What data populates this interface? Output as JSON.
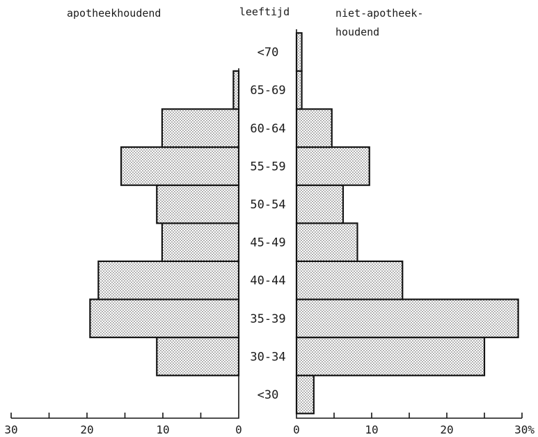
{
  "chart_data": {
    "type": "bar",
    "orientation": "horizontal",
    "layout": "population-pyramid",
    "title": "",
    "category_label": "leeftijd",
    "categories": [
      "<30",
      "30-34",
      "35-39",
      "40-44",
      "45-49",
      "50-54",
      "55-59",
      "60-64",
      "65-69",
      "<70"
    ],
    "series": [
      {
        "name": "apotheekhoudend",
        "side": "left",
        "values": [
          0,
          10.8,
          19.6,
          18.5,
          10.1,
          10.8,
          15.5,
          10.1,
          0.7,
          0
        ]
      },
      {
        "name": "niet-apotheek-\nhoudend",
        "name_lines": [
          "niet-apotheek-",
          "houdend"
        ],
        "side": "right",
        "values": [
          2.3,
          25.0,
          29.5,
          14.1,
          8.1,
          6.2,
          9.7,
          4.7,
          0.7,
          0.7
        ]
      }
    ],
    "left_axis": {
      "range": [
        0,
        30
      ],
      "ticks": [
        "30",
        "20",
        "10",
        "0"
      ],
      "direction": "reversed"
    },
    "right_axis": {
      "range": [
        0,
        30
      ],
      "ticks": [
        "0",
        "10",
        "20",
        "30%"
      ]
    },
    "unit": "%",
    "grid": false,
    "legend": "none",
    "fill_pattern": "dotted"
  }
}
